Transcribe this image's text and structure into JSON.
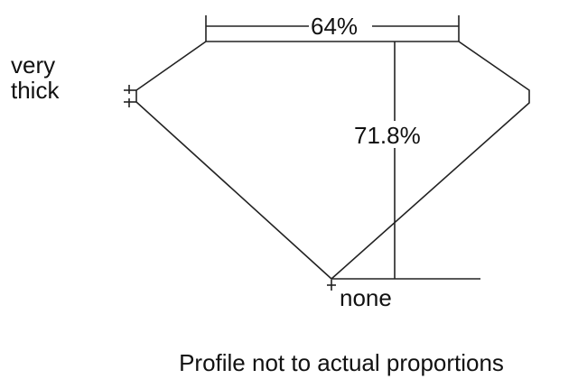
{
  "diagram": {
    "girdle_label_line1": "very",
    "girdle_label_line2": "thick",
    "table_label": "64%",
    "depth_label": "71.8%",
    "culet_label": "none",
    "caption": "Profile not to actual proportions",
    "line_color": "#222222"
  }
}
